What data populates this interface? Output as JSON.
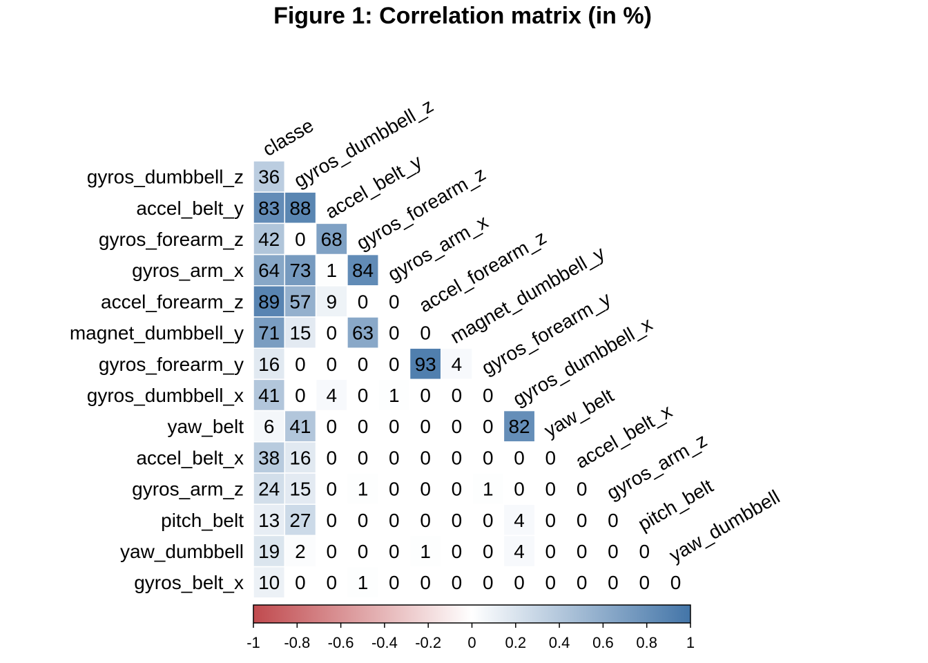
{
  "chart_data": {
    "type": "heatmap",
    "title": "Figure 1: Correlation matrix (in %)",
    "layout": "lower-triangle",
    "column_labels": [
      "classe",
      "gyros_dumbbell_z",
      "accel_belt_y",
      "gyros_forearm_z",
      "gyros_arm_x",
      "accel_forearm_z",
      "magnet_dumbbell_y",
      "gyros_forearm_y",
      "gyros_dumbbell_x",
      "yaw_belt",
      "accel_belt_x",
      "gyros_arm_z",
      "pitch_belt",
      "yaw_dumbbell"
    ],
    "row_labels": [
      "gyros_dumbbell_z",
      "accel_belt_y",
      "gyros_forearm_z",
      "gyros_arm_x",
      "accel_forearm_z",
      "magnet_dumbbell_y",
      "gyros_forearm_y",
      "gyros_dumbbell_x",
      "yaw_belt",
      "accel_belt_x",
      "gyros_arm_z",
      "pitch_belt",
      "yaw_dumbbell",
      "gyros_belt_x"
    ],
    "values": [
      [
        36
      ],
      [
        83,
        88
      ],
      [
        42,
        0,
        68
      ],
      [
        64,
        73,
        1,
        84
      ],
      [
        89,
        57,
        9,
        0,
        0
      ],
      [
        71,
        15,
        0,
        63,
        0,
        0
      ],
      [
        16,
        0,
        0,
        0,
        0,
        93,
        4
      ],
      [
        41,
        0,
        4,
        0,
        1,
        0,
        0,
        0
      ],
      [
        6,
        41,
        0,
        0,
        0,
        0,
        0,
        0,
        82
      ],
      [
        38,
        16,
        0,
        0,
        0,
        0,
        0,
        0,
        0,
        0
      ],
      [
        24,
        15,
        0,
        1,
        0,
        0,
        0,
        1,
        0,
        0,
        0
      ],
      [
        13,
        27,
        0,
        0,
        0,
        0,
        0,
        0,
        4,
        0,
        0,
        0
      ],
      [
        19,
        2,
        0,
        0,
        0,
        1,
        0,
        0,
        4,
        0,
        0,
        0,
        0
      ],
      [
        10,
        0,
        0,
        1,
        0,
        0,
        0,
        0,
        0,
        0,
        0,
        0,
        0,
        0
      ]
    ],
    "colorbar": {
      "range": [
        -1,
        1
      ],
      "ticks": [
        "-1",
        "-0.8",
        "-0.6",
        "-0.4",
        "-0.2",
        "0",
        "0.2",
        "0.4",
        "0.6",
        "0.8",
        "1"
      ],
      "colors": {
        "negative": "#C04A4E",
        "mid": "#FFFFFF",
        "positive": "#4375A8"
      }
    }
  }
}
